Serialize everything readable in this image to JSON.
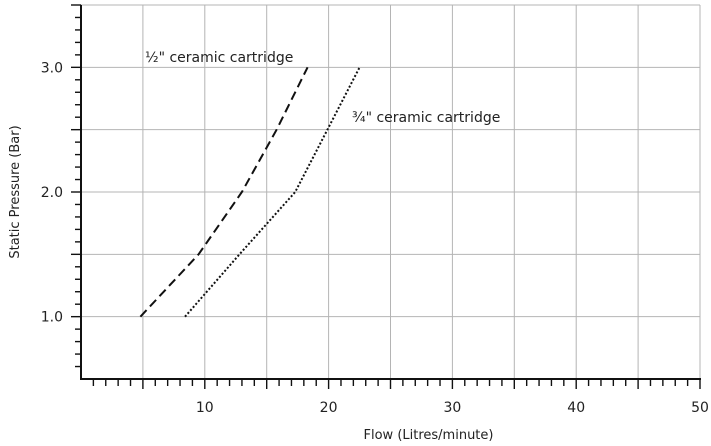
{
  "chart_data": {
    "type": "line",
    "title": "",
    "xlabel": "Flow (Litres/minute)",
    "ylabel": "Static Pressure (Bar)",
    "xlim": [
      0,
      50
    ],
    "ylim": [
      0.5,
      3.5
    ],
    "x_ticks": [
      {
        "value": 10,
        "label": "10"
      },
      {
        "value": 20,
        "label": "20"
      },
      {
        "value": 30,
        "label": "30"
      },
      {
        "value": 40,
        "label": "40"
      },
      {
        "value": 50,
        "label": "50"
      }
    ],
    "y_ticks": [
      {
        "value": 1.0,
        "label": "1.0"
      },
      {
        "value": 2.0,
        "label": "2.0"
      },
      {
        "value": 3.0,
        "label": "3.0"
      }
    ],
    "grid": true,
    "series": [
      {
        "name": "½\" ceramic cartridge",
        "style": "dashed",
        "color": "#111111",
        "points": [
          {
            "x": 4.8,
            "y": 1.0
          },
          {
            "x": 9.5,
            "y": 1.5
          },
          {
            "x": 13.0,
            "y": 2.0
          },
          {
            "x": 15.8,
            "y": 2.5
          },
          {
            "x": 18.3,
            "y": 3.0
          }
        ]
      },
      {
        "name": "¾\" ceramic cartridge",
        "style": "dotted",
        "color": "#111111",
        "points": [
          {
            "x": 8.4,
            "y": 1.0
          },
          {
            "x": 12.8,
            "y": 1.5
          },
          {
            "x": 17.3,
            "y": 2.0
          },
          {
            "x": 19.9,
            "y": 2.5
          },
          {
            "x": 22.5,
            "y": 3.0
          }
        ]
      }
    ]
  }
}
